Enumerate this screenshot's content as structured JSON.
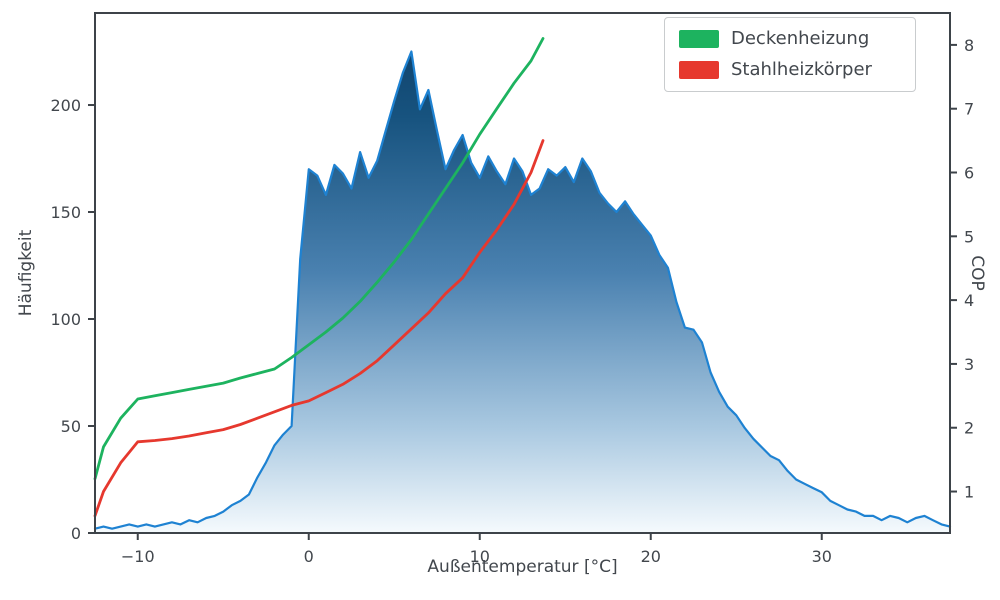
{
  "chart_data": {
    "type": "composite",
    "subtype": [
      "area",
      "line",
      "line"
    ],
    "title": "",
    "xlabel": "Außentemperatur [°C]",
    "ylabel_left": "Häufigkeit",
    "ylabel_right": "COP",
    "xlim": [
      -12.5,
      37.5
    ],
    "ylim_left": [
      0,
      243
    ],
    "ylim_right": [
      0.35,
      8.5
    ],
    "xticks": [
      -10,
      0,
      10,
      20,
      30
    ],
    "yticks_left": [
      0,
      50,
      100,
      150,
      200
    ],
    "yticks_right": [
      1,
      2,
      3,
      4,
      5,
      6,
      7,
      8
    ],
    "grid": false,
    "legend_position": "upper right",
    "text_color": "#42474d",
    "histogram": {
      "name": "Häufigkeit",
      "axis": "left",
      "x_start": -12.5,
      "x_step": 0.5,
      "values": [
        2,
        3,
        2,
        3,
        4,
        3,
        4,
        3,
        4,
        5,
        4,
        6,
        5,
        7,
        8,
        10,
        13,
        15,
        18,
        26,
        33,
        41,
        46,
        50,
        128,
        170,
        167,
        158,
        172,
        168,
        161,
        178,
        166,
        174,
        188,
        202,
        215,
        225,
        198,
        207,
        188,
        170,
        179,
        186,
        173,
        166,
        176,
        169,
        163,
        175,
        169,
        158,
        161,
        170,
        167,
        171,
        164,
        175,
        169,
        159,
        154,
        150,
        155,
        149,
        144,
        139,
        130,
        124,
        108,
        96,
        95,
        89,
        75,
        66,
        59,
        55,
        49,
        44,
        40,
        36,
        34,
        29,
        25,
        23,
        21,
        19,
        15,
        13,
        11,
        10,
        8,
        8,
        6,
        8,
        7,
        5,
        7,
        8,
        6,
        4,
        3
      ],
      "line_color": "#1e82d2",
      "fill_gradient": [
        {
          "offset": "0%",
          "color": "#0d3c64"
        },
        {
          "offset": "20%",
          "color": "#17537f"
        },
        {
          "offset": "50%",
          "color": "#4a81b0"
        },
        {
          "offset": "80%",
          "color": "#aac9e1"
        },
        {
          "offset": "100%",
          "color": "#f5fafd"
        }
      ]
    },
    "series": [
      {
        "name": "Deckenheizung",
        "axis": "right",
        "color": "#1db35f",
        "x": [
          -12.5,
          -12,
          -11,
          -10,
          -9,
          -8,
          -7,
          -6,
          -5,
          -4,
          -3,
          -2,
          -1,
          0,
          1,
          2,
          3,
          4,
          5,
          6,
          7,
          8,
          9,
          10,
          11,
          12,
          13,
          13.7
        ],
        "values": [
          1.2,
          1.7,
          2.15,
          2.45,
          2.5,
          2.55,
          2.6,
          2.65,
          2.7,
          2.78,
          2.85,
          2.92,
          3.1,
          3.3,
          3.5,
          3.72,
          3.98,
          4.28,
          4.6,
          4.95,
          5.35,
          5.75,
          6.15,
          6.6,
          7.0,
          7.4,
          7.75,
          8.1
        ]
      },
      {
        "name": "Stahlheizkörper",
        "axis": "right",
        "color": "#e6382e",
        "x": [
          -12.5,
          -12,
          -11,
          -10,
          -9,
          -8,
          -7,
          -6,
          -5,
          -4,
          -3,
          -2,
          -1,
          0,
          1,
          2,
          3,
          4,
          5,
          6,
          7,
          8,
          9,
          10,
          11,
          12,
          13,
          13.7
        ],
        "values": [
          0.62,
          1.0,
          1.45,
          1.78,
          1.8,
          1.83,
          1.87,
          1.92,
          1.97,
          2.05,
          2.15,
          2.25,
          2.35,
          2.42,
          2.55,
          2.68,
          2.85,
          3.05,
          3.3,
          3.55,
          3.8,
          4.1,
          4.35,
          4.75,
          5.1,
          5.5,
          6.0,
          6.5
        ]
      }
    ],
    "frame_color": "#3d4349"
  }
}
